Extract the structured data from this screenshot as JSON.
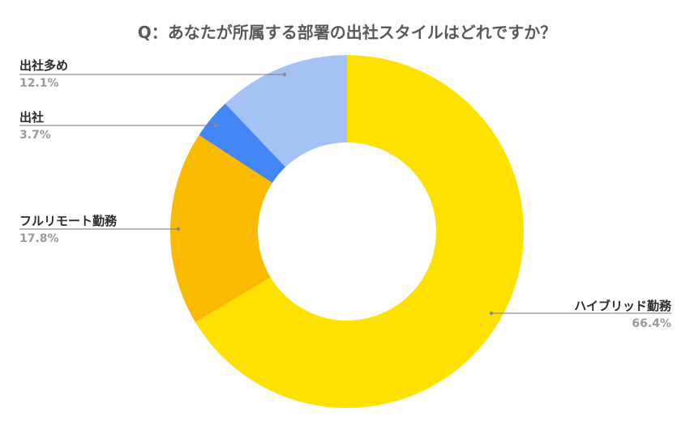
{
  "chart_data": {
    "type": "pie",
    "donut": true,
    "title": "Q：あなたが所属する部署の出社スタイルはどれですか？",
    "slices": [
      {
        "label": "ハイブリッド勤務",
        "value": 66.4,
        "value_label": "66.4%",
        "color": "#FFE100"
      },
      {
        "label": "フルリモート勤務",
        "value": 17.8,
        "value_label": "17.8%",
        "color": "#F9BA00"
      },
      {
        "label": "出社",
        "value": 3.7,
        "value_label": "3.7%",
        "color": "#4287F5"
      },
      {
        "label": "出社多め",
        "value": 12.1,
        "value_label": "12.1%",
        "color": "#A4C2F4"
      }
    ],
    "start_angle": "12 o'clock",
    "direction": "clockwise",
    "legend": "none"
  }
}
